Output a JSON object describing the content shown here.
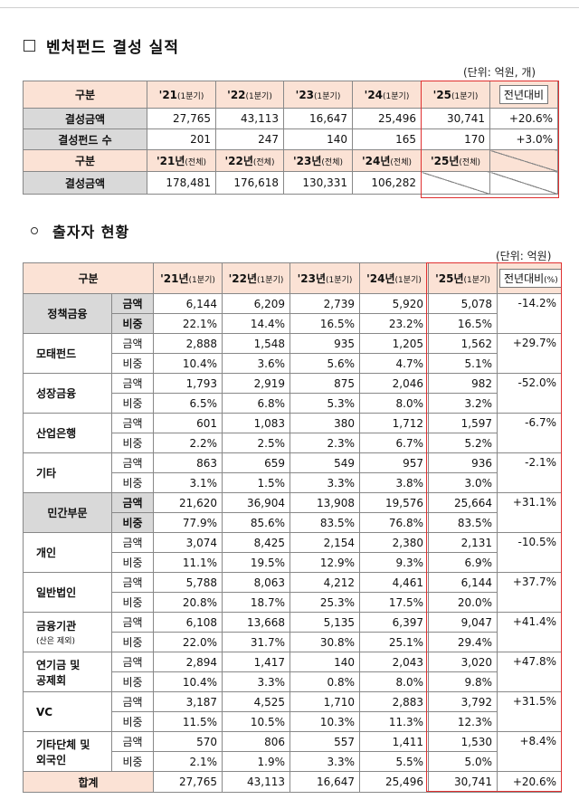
{
  "section1": {
    "title": "벤처펀드 결성 실적",
    "unit": "(단위: 억원, 개)",
    "header_label": "구분",
    "quarter_columns": [
      {
        "year": "'21",
        "suffix": "(1분기)"
      },
      {
        "year": "'22",
        "suffix": "(1분기)"
      },
      {
        "year": "'23",
        "suffix": "(1분기)"
      },
      {
        "year": "'24",
        "suffix": "(1분기)"
      },
      {
        "year": "'25",
        "suffix": "(1분기)"
      }
    ],
    "yoy_label": "전년대비",
    "rows": [
      {
        "label": "결성금액",
        "values": [
          "27,765",
          "43,113",
          "16,647",
          "25,496",
          "30,741"
        ],
        "yoy": "+20.6%"
      },
      {
        "label": "결성펀드 수",
        "values": [
          "201",
          "247",
          "140",
          "165",
          "170"
        ],
        "yoy": "+3.0%"
      }
    ],
    "full_columns": [
      {
        "year": "'21년",
        "suffix": "(전체)"
      },
      {
        "year": "'22년",
        "suffix": "(전체)"
      },
      {
        "year": "'23년",
        "suffix": "(전체)"
      },
      {
        "year": "'24년",
        "suffix": "(전체)"
      },
      {
        "year": "'25년",
        "suffix": "(전체)"
      }
    ],
    "full_row": {
      "label": "결성금액",
      "values": [
        "178,481",
        "176,618",
        "130,331",
        "106,282"
      ]
    }
  },
  "section2": {
    "title": "출자자 현황",
    "unit": "(단위: 억원)",
    "header_label": "구분",
    "columns": [
      {
        "year": "'21년",
        "suffix": "(1분기)"
      },
      {
        "year": "'22년",
        "suffix": "(1분기)"
      },
      {
        "year": "'23년",
        "suffix": "(1분기)"
      },
      {
        "year": "'24년",
        "suffix": "(1분기)"
      },
      {
        "year": "'25년",
        "suffix": "(1분기)"
      }
    ],
    "yoy_label": "전년대비",
    "yoy_unit": "(%)",
    "amount_label": "금액",
    "share_label": "비중",
    "groups": [
      {
        "label": "정책금융",
        "sub": "",
        "major": true,
        "amounts": [
          "6,144",
          "6,209",
          "2,739",
          "5,920",
          "5,078"
        ],
        "shares": [
          "22.1%",
          "14.4%",
          "16.5%",
          "23.2%",
          "16.5%"
        ],
        "yoy": "-14.2%"
      },
      {
        "label": "모태펀드",
        "sub": "",
        "major": false,
        "amounts": [
          "2,888",
          "1,548",
          "935",
          "1,205",
          "1,562"
        ],
        "shares": [
          "10.4%",
          "3.6%",
          "5.6%",
          "4.7%",
          "5.1%"
        ],
        "yoy": "+29.7%"
      },
      {
        "label": "성장금융",
        "sub": "",
        "major": false,
        "amounts": [
          "1,793",
          "2,919",
          "875",
          "2,046",
          "982"
        ],
        "shares": [
          "6.5%",
          "6.8%",
          "5.3%",
          "8.0%",
          "3.2%"
        ],
        "yoy": "-52.0%"
      },
      {
        "label": "산업은행",
        "sub": "",
        "major": false,
        "amounts": [
          "601",
          "1,083",
          "380",
          "1,712",
          "1,597"
        ],
        "shares": [
          "2.2%",
          "2.5%",
          "2.3%",
          "6.7%",
          "5.2%"
        ],
        "yoy": "-6.7%"
      },
      {
        "label": "기타",
        "sub": "",
        "major": false,
        "amounts": [
          "863",
          "659",
          "549",
          "957",
          "936"
        ],
        "shares": [
          "3.1%",
          "1.5%",
          "3.3%",
          "3.8%",
          "3.0%"
        ],
        "yoy": "-2.1%"
      },
      {
        "label": "민간부문",
        "sub": "",
        "major": true,
        "amounts": [
          "21,620",
          "36,904",
          "13,908",
          "19,576",
          "25,664"
        ],
        "shares": [
          "77.9%",
          "85.6%",
          "83.5%",
          "76.8%",
          "83.5%"
        ],
        "yoy": "+31.1%"
      },
      {
        "label": "개인",
        "sub": "",
        "major": false,
        "amounts": [
          "3,074",
          "8,425",
          "2,154",
          "2,380",
          "2,131"
        ],
        "shares": [
          "11.1%",
          "19.5%",
          "12.9%",
          "9.3%",
          "6.9%"
        ],
        "yoy": "-10.5%"
      },
      {
        "label": "일반법인",
        "sub": "",
        "major": false,
        "amounts": [
          "5,788",
          "8,063",
          "4,212",
          "4,461",
          "6,144"
        ],
        "shares": [
          "20.8%",
          "18.7%",
          "25.3%",
          "17.5%",
          "20.0%"
        ],
        "yoy": "+37.7%"
      },
      {
        "label": "금융기관",
        "sub": "(산은 제외)",
        "major": false,
        "amounts": [
          "6,108",
          "13,668",
          "5,135",
          "6,397",
          "9,047"
        ],
        "shares": [
          "22.0%",
          "31.7%",
          "30.8%",
          "25.1%",
          "29.4%"
        ],
        "yoy": "+41.4%"
      },
      {
        "label": "연기금 및",
        "label2": "공제회",
        "sub": "",
        "major": false,
        "amounts": [
          "2,894",
          "1,417",
          "140",
          "2,043",
          "3,020"
        ],
        "shares": [
          "10.4%",
          "3.3%",
          "0.8%",
          "8.0%",
          "9.8%"
        ],
        "yoy": "+47.8%"
      },
      {
        "label": "VC",
        "sub": "",
        "major": false,
        "amounts": [
          "3,187",
          "4,525",
          "1,710",
          "2,883",
          "3,792"
        ],
        "shares": [
          "11.5%",
          "10.5%",
          "10.3%",
          "11.3%",
          "12.3%"
        ],
        "yoy": "+31.5%"
      },
      {
        "label": "기타단체 및",
        "label2": "외국인",
        "sub": "",
        "major": false,
        "amounts": [
          "570",
          "806",
          "557",
          "1,411",
          "1,530"
        ],
        "shares": [
          "2.1%",
          "1.9%",
          "3.3%",
          "5.5%",
          "5.0%"
        ],
        "yoy": "+8.4%"
      }
    ],
    "total": {
      "label": "합계",
      "values": [
        "27,765",
        "43,113",
        "16,647",
        "25,496",
        "30,741"
      ],
      "yoy": "+20.6%"
    }
  }
}
